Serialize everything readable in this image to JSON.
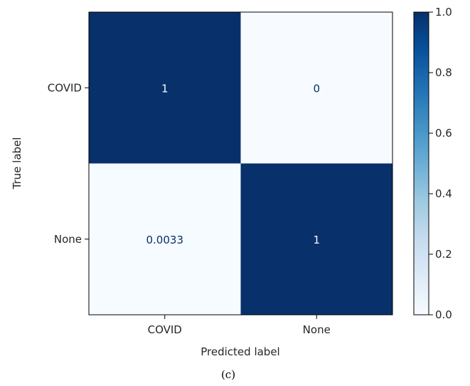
{
  "chart_data": {
    "type": "heatmap",
    "title": "",
    "xlabel": "Predicted label",
    "ylabel": "True label",
    "x_categories": [
      "COVID",
      "None"
    ],
    "y_categories": [
      "COVID",
      "None"
    ],
    "values": [
      [
        1,
        0
      ],
      [
        0.0033,
        1
      ]
    ],
    "value_labels": [
      [
        "1",
        "0"
      ],
      [
        "0.0033",
        "1"
      ]
    ],
    "colormap": "Blues",
    "colorbar": {
      "range": [
        0.0,
        1.0
      ],
      "ticks": [
        0.0,
        0.2,
        0.4,
        0.6,
        0.8,
        1.0
      ],
      "tick_labels": [
        "0.0",
        "0.2",
        "0.4",
        "0.6",
        "0.8",
        "1.0"
      ]
    }
  },
  "caption": "(c)",
  "colors": {
    "low": "#f7fbff",
    "high": "#08306b",
    "text_dark": "#08306b",
    "text_light": "#f7fbff"
  }
}
